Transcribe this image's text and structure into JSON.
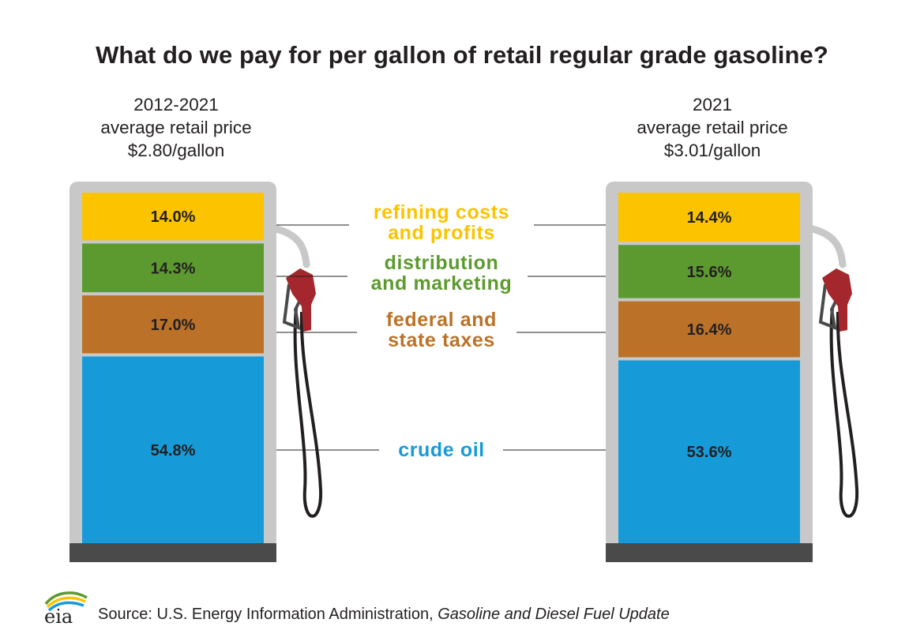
{
  "title": "What do we pay for per gallon of retail regular grade gasoline?",
  "colors": {
    "refining": "#fcc400",
    "distribution": "#5c9a2f",
    "taxes": "#bb7228",
    "crude": "#169bd8",
    "frame": "#c8c8c8",
    "base": "#4a4a4a",
    "nozzle": "#a3272d"
  },
  "pumps": [
    {
      "line1": "2012-2021",
      "line2": "average retail price",
      "line3": "$2.80/gallon"
    },
    {
      "line1": "2021",
      "line2": "average retail price",
      "line3": "$3.01/gallon"
    }
  ],
  "chart_data": {
    "type": "bar",
    "stacked": true,
    "percent": true,
    "categories": [
      "2012-2021",
      "2021"
    ],
    "series": [
      {
        "name": "refining costs and profits",
        "label_line1": "refining costs",
        "label_line2": "and profits",
        "color": "#fcc400",
        "values": [
          14.0,
          14.4
        ],
        "labels": [
          "14.0%",
          "14.4%"
        ]
      },
      {
        "name": "distribution and marketing",
        "label_line1": "distribution",
        "label_line2": "and marketing",
        "color": "#5c9a2f",
        "values": [
          14.3,
          15.6
        ],
        "labels": [
          "14.3%",
          "15.6%"
        ]
      },
      {
        "name": "federal and state taxes",
        "label_line1": "federal and",
        "label_line2": "state taxes",
        "color": "#bb7228",
        "values": [
          17.0,
          16.4
        ],
        "labels": [
          "17.0%",
          "16.4%"
        ]
      },
      {
        "name": "crude oil",
        "label_line1": "crude oil",
        "label_line2": "",
        "color": "#169bd8",
        "values": [
          54.8,
          53.6
        ],
        "labels": [
          "54.8%",
          "53.6%"
        ]
      }
    ]
  },
  "source": {
    "prefix": "Source: U.S. Energy Information Administration,",
    "publication": "Gasoline and Diesel Fuel Update"
  },
  "logo_text": "eia"
}
